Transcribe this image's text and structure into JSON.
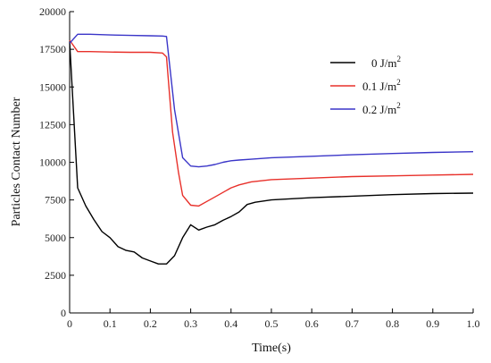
{
  "chart_data": {
    "type": "line",
    "title": "",
    "xlabel": "Time(s)",
    "ylabel": "Particles Contact Number",
    "xlim": [
      0,
      1.0
    ],
    "ylim": [
      0,
      20000
    ],
    "x_ticks": [
      0,
      0.1,
      0.2,
      0.3,
      0.4,
      0.5,
      0.6,
      0.7,
      0.8,
      0.9,
      1.0
    ],
    "x_tick_labels": [
      "0",
      "0.1",
      "0.2",
      "0.3",
      "0.4",
      "0.5",
      "0.6",
      "0.7",
      "0.8",
      "0.9",
      "1.0"
    ],
    "y_ticks": [
      0,
      2500,
      5000,
      7500,
      10000,
      12500,
      15000,
      17500,
      20000
    ],
    "y_tick_labels": [
      "0",
      "2500",
      "5000",
      "7500",
      "10000",
      "12500",
      "15000",
      "17500",
      "20000"
    ],
    "grid": false,
    "legend_position": "top-right",
    "series": [
      {
        "name": "0 J/m",
        "name_sup": "2",
        "color": "#000000",
        "x": [
          0,
          0.02,
          0.04,
          0.06,
          0.08,
          0.1,
          0.12,
          0.14,
          0.16,
          0.18,
          0.2,
          0.22,
          0.24,
          0.26,
          0.28,
          0.3,
          0.32,
          0.34,
          0.36,
          0.38,
          0.4,
          0.42,
          0.44,
          0.46,
          0.5,
          0.6,
          0.7,
          0.8,
          0.9,
          1.0
        ],
        "y": [
          18000,
          8300,
          7100,
          6200,
          5400,
          5000,
          4400,
          4150,
          4050,
          3650,
          3450,
          3250,
          3250,
          3800,
          5000,
          5850,
          5500,
          5700,
          5850,
          6150,
          6400,
          6700,
          7200,
          7350,
          7500,
          7650,
          7750,
          7850,
          7920,
          7950
        ]
      },
      {
        "name": "0.1 J/m",
        "name_sup": "2",
        "color": "#e8302a",
        "x": [
          0,
          0.02,
          0.05,
          0.1,
          0.15,
          0.2,
          0.23,
          0.24,
          0.255,
          0.27,
          0.28,
          0.3,
          0.32,
          0.34,
          0.36,
          0.38,
          0.4,
          0.42,
          0.45,
          0.5,
          0.6,
          0.7,
          0.8,
          0.9,
          1.0
        ],
        "y": [
          18100,
          17350,
          17350,
          17320,
          17300,
          17300,
          17250,
          17000,
          12000,
          9300,
          7800,
          7150,
          7100,
          7400,
          7700,
          8000,
          8300,
          8500,
          8700,
          8850,
          8950,
          9050,
          9100,
          9150,
          9200
        ]
      },
      {
        "name": "0.2 J/m",
        "name_sup": "2",
        "color": "#3a35c8",
        "x": [
          0,
          0.02,
          0.05,
          0.1,
          0.15,
          0.2,
          0.23,
          0.24,
          0.26,
          0.28,
          0.3,
          0.32,
          0.34,
          0.36,
          0.38,
          0.4,
          0.42,
          0.45,
          0.5,
          0.6,
          0.7,
          0.8,
          0.9,
          1.0
        ],
        "y": [
          17900,
          18500,
          18500,
          18450,
          18420,
          18400,
          18380,
          18350,
          13500,
          10300,
          9750,
          9700,
          9750,
          9850,
          10000,
          10100,
          10150,
          10200,
          10300,
          10400,
          10500,
          10580,
          10650,
          10700
        ]
      }
    ]
  }
}
